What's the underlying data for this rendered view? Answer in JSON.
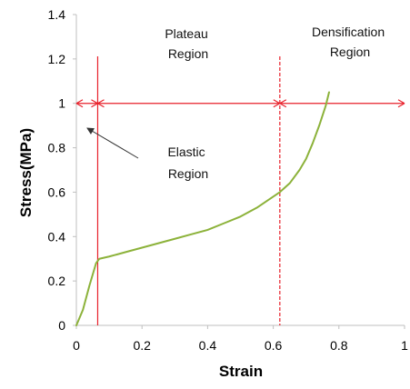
{
  "chart_data": {
    "type": "line",
    "title": "",
    "xlabel": "Strain",
    "ylabel": "Stress(MPa)",
    "xlim": [
      0,
      1
    ],
    "ylim": [
      0,
      1.4
    ],
    "x_ticks": [
      0,
      0.2,
      0.4,
      0.6,
      0.8,
      1
    ],
    "x_tick_labels": [
      "0",
      "0.2",
      "0.4",
      "0.6",
      "0.8",
      "1"
    ],
    "y_ticks": [
      0,
      0.2,
      0.4,
      0.6,
      0.8,
      1,
      1.2,
      1.4
    ],
    "y_tick_labels": [
      "0",
      "0.2",
      "0.4",
      "0.6",
      "0.8",
      "1",
      "1.2",
      "1.4"
    ],
    "grid": false,
    "series": [
      {
        "color": "#8cb23a",
        "x": [
          0,
          0.02,
          0.04,
          0.06,
          0.07,
          0.1,
          0.15,
          0.2,
          0.25,
          0.3,
          0.35,
          0.4,
          0.45,
          0.5,
          0.55,
          0.6,
          0.62,
          0.65,
          0.68,
          0.7,
          0.72,
          0.74,
          0.76,
          0.77
        ],
        "y": [
          0,
          0.07,
          0.18,
          0.28,
          0.3,
          0.31,
          0.33,
          0.35,
          0.37,
          0.39,
          0.41,
          0.43,
          0.46,
          0.49,
          0.53,
          0.58,
          0.6,
          0.64,
          0.7,
          0.75,
          0.82,
          0.9,
          0.99,
          1.05
        ]
      }
    ],
    "vertical_lines": [
      {
        "x": 0.065,
        "color": "#e8202a",
        "style": "solid"
      },
      {
        "x": 0.62,
        "color": "#e8202a",
        "style": "dashed"
      }
    ],
    "region_arrow": {
      "y": 1.0,
      "x_points": [
        0,
        0.065,
        0.62,
        1.0
      ],
      "color": "#e8202a"
    },
    "annotations": [
      {
        "lines": [
          "Plateau",
          "Region"
        ]
      },
      {
        "lines": [
          "Densification",
          "Region"
        ]
      },
      {
        "lines": [
          "Elastic",
          "Region"
        ]
      }
    ]
  }
}
